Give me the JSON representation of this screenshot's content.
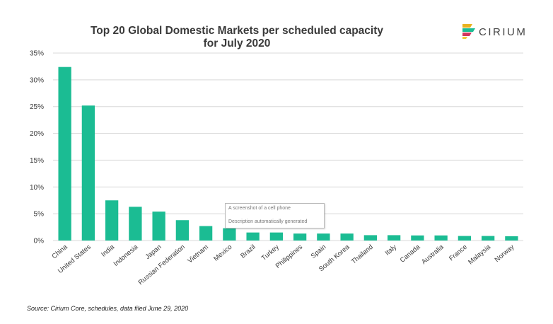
{
  "chart_data": {
    "type": "bar",
    "title_lines": [
      "Top 20 Global Domestic Markets per scheduled capacity",
      "for July 2020"
    ],
    "categories": [
      "China",
      "United States",
      "India",
      "Indonesia",
      "Japan",
      "Russian Federation",
      "Vietnam",
      "Mexico",
      "Brazil",
      "Turkey",
      "Philippines",
      "Spain",
      "South Korea",
      "Thailand",
      "Italy",
      "Canada",
      "Australia",
      "France",
      "Malaysia",
      "Norway"
    ],
    "values": [
      32.4,
      25.2,
      7.5,
      6.3,
      5.4,
      3.8,
      2.7,
      2.3,
      1.5,
      1.5,
      1.3,
      1.3,
      1.3,
      1.0,
      1.0,
      0.95,
      0.95,
      0.85,
      0.85,
      0.8
    ],
    "ylim": [
      0,
      35
    ],
    "yticks": [
      "0%",
      "5%",
      "10%",
      "15%",
      "20%",
      "25%",
      "30%",
      "35%"
    ],
    "ytick_values": [
      0,
      5,
      10,
      15,
      20,
      25,
      30,
      35
    ],
    "grid": true,
    "bar_color": "#1bbc93",
    "grid_color": "#d9d9d9"
  },
  "logo": {
    "word": "CIRIUM",
    "colors": [
      "#e8b21f",
      "#1bbc93",
      "#d2365f",
      "#f0c93a"
    ]
  },
  "source": "Source: Cirium Core, schedules, data filed June 29, 2020",
  "tooltip": {
    "line1": "A screenshot of a cell phone",
    "line2": "Description automatically generated"
  }
}
